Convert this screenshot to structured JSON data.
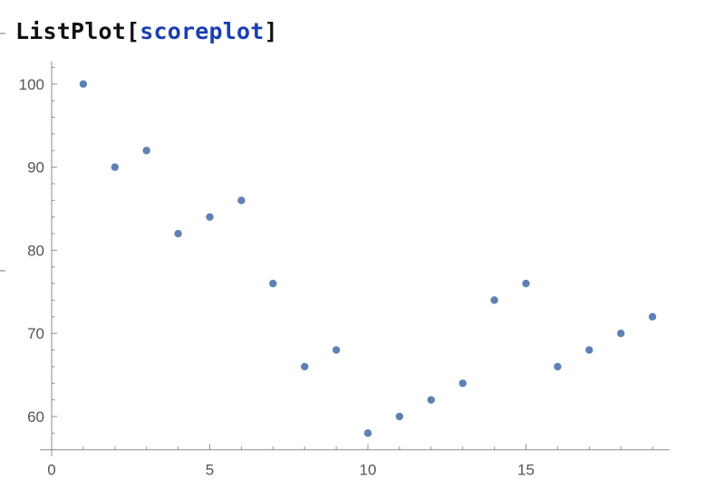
{
  "notebook": {
    "input_code": {
      "function": "ListPlot",
      "open_bracket": "[",
      "argument": "scoreplot",
      "close_bracket": "]"
    }
  },
  "chart_data": {
    "type": "scatter",
    "title": "",
    "xlabel": "",
    "ylabel": "",
    "xlim": [
      0,
      19.4
    ],
    "ylim": [
      56,
      102.5
    ],
    "x_ticks": [
      0,
      5,
      10,
      15
    ],
    "y_ticks": [
      60,
      70,
      80,
      90,
      100
    ],
    "grid": false,
    "legend": "none",
    "point_color": "#5e81b5",
    "series": [
      {
        "x": [
          1,
          2,
          3,
          4,
          5,
          6,
          7,
          8,
          9,
          10,
          11,
          12,
          13,
          14,
          15,
          16,
          17,
          18,
          19
        ],
        "y": [
          100,
          90,
          92,
          82,
          84,
          86,
          76,
          66,
          68,
          58,
          60,
          62,
          64,
          74,
          76,
          66,
          68,
          70,
          72
        ]
      }
    ]
  }
}
